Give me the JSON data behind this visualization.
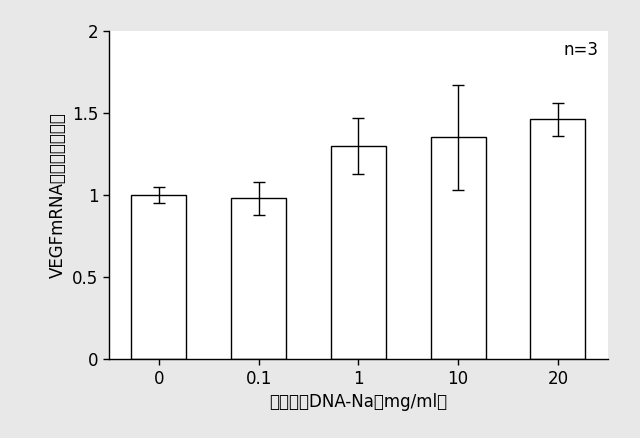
{
  "categories": [
    "0",
    "0.1",
    "1",
    "10",
    "20"
  ],
  "values": [
    1.0,
    0.98,
    1.3,
    1.35,
    1.46
  ],
  "errors": [
    0.05,
    0.1,
    0.17,
    0.32,
    0.1
  ],
  "bar_color": "#ffffff",
  "bar_edgecolor": "#000000",
  "bar_width": 0.55,
  "xlabel": "加水分解DNA-Na（mg/ml）",
  "ylabel": "VEGFmRNA発現量（倍率）",
  "ylim": [
    0,
    2.0
  ],
  "yticks": [
    0,
    0.5,
    1.0,
    1.5,
    2.0
  ],
  "annotation": "n=3",
  "background_color": "#e8e8e8",
  "plot_bg_color": "#ffffff",
  "label_fontsize": 12,
  "tick_fontsize": 12,
  "annot_fontsize": 12
}
